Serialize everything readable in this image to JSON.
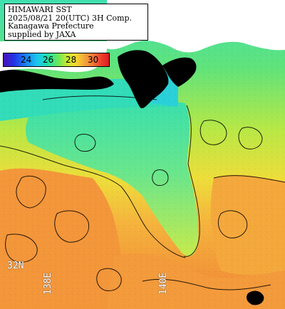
{
  "title": {
    "line1": "HIMAWARI SST",
    "line2": "2025/08/21 20(UTC) 3H Comp.",
    "line3": "Kanagawa Prefecture",
    "line4": "supplied by JAXA"
  },
  "legend": {
    "ticks": [
      "24",
      "26",
      "28",
      "30"
    ],
    "colors": {
      "cool": "#2233e8",
      "mid": "#22e0a6",
      "warm": "#f5a93a",
      "hot": "#d81e22"
    }
  },
  "grid_labels": {
    "lat": "32N",
    "lon_left": "138E",
    "lon_right": "140E"
  },
  "palette": {
    "land": "#000000",
    "cloud": "#ffffff",
    "sea_cool": "#3fe0b0",
    "sea_green": "#8be85a",
    "sea_yellow": "#e6e43a",
    "sea_orange": "#f5a23c",
    "sea_deep": "#f08036"
  }
}
